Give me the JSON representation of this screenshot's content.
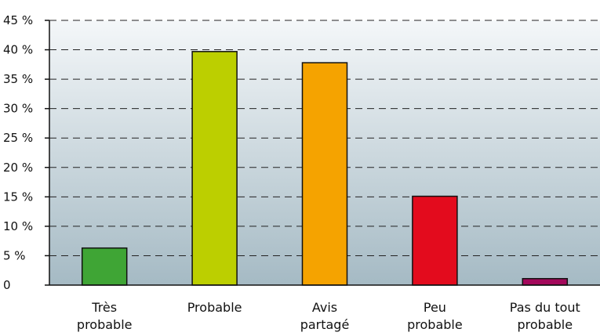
{
  "chart_data": {
    "type": "bar",
    "categories": [
      [
        "Très",
        "probable"
      ],
      [
        "Probable"
      ],
      [
        "Avis",
        "partagé"
      ],
      [
        "Peu",
        "probable"
      ],
      [
        "Pas du tout",
        "probable"
      ]
    ],
    "values": [
      6.3,
      39.7,
      37.8,
      15.1,
      1.1
    ],
    "colors": [
      "#3fa535",
      "#bccf00",
      "#f5a300",
      "#e30b1d",
      "#a3085b"
    ],
    "ylim": [
      0,
      45
    ],
    "yticks": [
      0,
      5,
      10,
      15,
      20,
      25,
      30,
      35,
      40,
      45
    ],
    "ytick_labels": [
      "0",
      "5 %",
      "10 %",
      "15 %",
      "20 %",
      "25 %",
      "30 %",
      "35 %",
      "40 %",
      "45 %"
    ],
    "grid": "dashed horizontal",
    "background_gradient": [
      "#f4f7f9",
      "#a5bac4"
    ],
    "title": "",
    "xlabel": "",
    "ylabel": ""
  }
}
